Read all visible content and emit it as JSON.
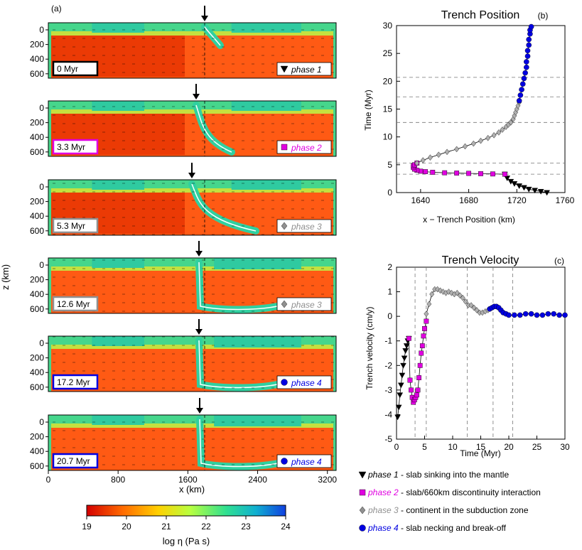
{
  "panel_a": {
    "label": "(a)",
    "ylabel": "z (km)",
    "xlabel": "x (km)",
    "x_ticks": [
      "0",
      "800",
      "1600",
      "2400",
      "3200"
    ],
    "y_ticks": [
      "0",
      "200",
      "400",
      "600"
    ],
    "snapshots": [
      {
        "time": "0 Myr",
        "phase": "phase 1",
        "marker": "triangle",
        "color": "#000000"
      },
      {
        "time": "3.3 Myr",
        "phase": "phase 2",
        "marker": "square",
        "color": "#e000e0"
      },
      {
        "time": "5.3 Myr",
        "phase": "phase 3",
        "marker": "diamond",
        "color": "#909090"
      },
      {
        "time": "12.6 Myr",
        "phase": "phase 3",
        "marker": "diamond",
        "color": "#909090"
      },
      {
        "time": "17.2 Myr",
        "phase": "phase 4",
        "marker": "circle",
        "color": "#0000e0"
      },
      {
        "time": "20.7 Myr",
        "phase": "phase 4",
        "marker": "circle",
        "color": "#0000e0"
      }
    ],
    "colorbar": {
      "label": "log η (Pa s)",
      "ticks": [
        "19",
        "20",
        "21",
        "22",
        "23",
        "24"
      ],
      "colors": [
        "#d40000",
        "#ff6a00",
        "#ffd000",
        "#b8ff40",
        "#30e090",
        "#10b0d0",
        "#1040e0"
      ]
    }
  },
  "chart_data": [
    {
      "type": "scatter",
      "title": "Trench Position",
      "label": "(b)",
      "xlabel": "x − Trench Position (km)",
      "ylabel": "Time (Myr)",
      "xlim": [
        1620,
        1760
      ],
      "ylim": [
        0,
        30
      ],
      "x_ticks": [
        "1640",
        "1680",
        "1720",
        "1760"
      ],
      "y_ticks": [
        "0",
        "5",
        "10",
        "15",
        "20",
        "25",
        "30"
      ],
      "hlines": [
        3.3,
        5.3,
        12.6,
        17.2,
        20.7
      ],
      "series": [
        {
          "phase": "phase 1",
          "marker": "triangle",
          "color": "#000000",
          "x": [
            1745,
            1740,
            1735,
            1730,
            1726,
            1722,
            1718,
            1715,
            1712,
            1710
          ],
          "y": [
            0,
            0.2,
            0.4,
            0.6,
            0.9,
            1.2,
            1.6,
            2.0,
            2.6,
            3.3
          ]
        },
        {
          "phase": "phase 2",
          "marker": "square",
          "color": "#e000e0",
          "x": [
            1710,
            1700,
            1690,
            1680,
            1670,
            1660,
            1650,
            1644,
            1640,
            1637,
            1635,
            1634,
            1634,
            1635,
            1637
          ],
          "y": [
            3.3,
            3.35,
            3.4,
            3.45,
            3.5,
            3.55,
            3.65,
            3.75,
            3.85,
            4.0,
            4.2,
            4.5,
            4.8,
            5.0,
            5.3
          ]
        },
        {
          "phase": "phase 3",
          "marker": "diamond",
          "color": "#b0b0b0",
          "x": [
            1637,
            1642,
            1648,
            1655,
            1662,
            1670,
            1677,
            1684,
            1690,
            1696,
            1701,
            1705,
            1708,
            1711,
            1713,
            1715
          ],
          "y": [
            5.3,
            5.8,
            6.3,
            6.8,
            7.3,
            7.8,
            8.3,
            8.8,
            9.3,
            9.8,
            10.3,
            10.8,
            11.3,
            11.8,
            12.2,
            12.6
          ]
        },
        {
          "phase": "phase 3",
          "marker": "diamond",
          "color": "#b0b0b0",
          "x": [
            1715,
            1717,
            1718,
            1719,
            1720,
            1721,
            1722
          ],
          "y": [
            12.6,
            13.2,
            13.8,
            14.4,
            15.0,
            15.6,
            16.2
          ]
        },
        {
          "phase": "phase 4",
          "marker": "circle",
          "color": "#0000e0",
          "x": [
            1722,
            1723,
            1724,
            1725,
            1726,
            1727,
            1728,
            1728,
            1729,
            1729,
            1730,
            1730,
            1731,
            1731,
            1732
          ],
          "y": [
            16.5,
            17.5,
            18.5,
            19.5,
            20.5,
            21.5,
            22.5,
            23.5,
            24.5,
            25.5,
            26.5,
            27.5,
            28.5,
            29.2,
            29.8
          ]
        }
      ]
    },
    {
      "type": "scatter",
      "title": "Trench Velocity",
      "label": "(c)",
      "xlabel": "Time (Myr)",
      "ylabel": "Trench velocity (cm/y)",
      "xlim": [
        0,
        30
      ],
      "ylim": [
        -5,
        2
      ],
      "x_ticks": [
        "0",
        "5",
        "10",
        "15",
        "20",
        "25",
        "30"
      ],
      "y_ticks": [
        "-5",
        "-4",
        "-3",
        "-2",
        "-1",
        "0",
        "1",
        "2"
      ],
      "vlines": [
        3.3,
        5.3,
        12.6,
        17.2,
        20.7
      ],
      "series": [
        {
          "phase": "phase 1",
          "marker": "triangle",
          "color": "#000000",
          "x": [
            0.2,
            0.4,
            0.6,
            0.8,
            1.0,
            1.2,
            1.4,
            1.6,
            1.8,
            2.0,
            2.2
          ],
          "y": [
            -4.1,
            -3.7,
            -3.2,
            -2.8,
            -2.4,
            -2.0,
            -1.7,
            -1.4,
            -1.2,
            -1.0,
            -0.9
          ]
        },
        {
          "phase": "phase 2",
          "marker": "square",
          "color": "#e000e0",
          "x": [
            2.2,
            2.4,
            2.6,
            2.8,
            3.0,
            3.2,
            3.4,
            3.6,
            3.8,
            4.0,
            4.2,
            4.4,
            4.6,
            4.8,
            5.0,
            5.3
          ],
          "y": [
            -0.9,
            -2.6,
            -3.0,
            -3.3,
            -3.5,
            -3.4,
            -3.3,
            -3.2,
            -3.0,
            -2.5,
            -2.0,
            -1.5,
            -1.2,
            -0.8,
            -0.5,
            -0.2
          ]
        },
        {
          "phase": "phase 3",
          "marker": "diamond",
          "color": "#b0b0b0",
          "x": [
            5.3,
            5.8,
            6.3,
            6.8,
            7.3,
            7.8,
            8.3,
            8.8,
            9.3,
            9.8,
            10.3,
            10.8,
            11.3,
            11.8,
            12.3,
            12.8,
            13.3,
            13.8,
            14.3,
            14.8,
            15.3,
            15.8,
            16.3
          ],
          "y": [
            0.1,
            0.5,
            0.9,
            1.1,
            1.1,
            1.05,
            1.0,
            0.95,
            1.0,
            0.95,
            0.9,
            0.95,
            0.85,
            0.75,
            0.6,
            0.45,
            0.45,
            0.35,
            0.25,
            0.15,
            0.15,
            0.2,
            0.25
          ]
        },
        {
          "phase": "phase 4",
          "marker": "circle",
          "color": "#0000e0",
          "x": [
            16.6,
            17.0,
            17.4,
            17.8,
            18.2,
            18.6,
            19.0,
            19.5,
            20.0,
            21.0,
            22.0,
            23.0,
            24.0,
            25.0,
            26.0,
            27.0,
            28.0,
            29.0,
            30.0
          ],
          "y": [
            0.3,
            0.35,
            0.4,
            0.4,
            0.35,
            0.25,
            0.15,
            0.1,
            0.05,
            0.05,
            0.05,
            0.1,
            0.1,
            0.05,
            0.05,
            0.1,
            0.1,
            0.05,
            0.05
          ]
        }
      ]
    }
  ],
  "legend": [
    {
      "marker": "triangle",
      "color": "#000000",
      "phase": "phase 1",
      "desc": " - slab sinking into the mantle"
    },
    {
      "marker": "square",
      "color": "#e000e0",
      "phase": "phase 2",
      "desc": " - slab/660km discontinuity interaction"
    },
    {
      "marker": "diamond",
      "color": "#909090",
      "phase": "phase 3",
      "desc": " - continent in the subduction zone"
    },
    {
      "marker": "circle",
      "color": "#0000e0",
      "phase": "phase 4",
      "desc": " - slab necking and break-off"
    }
  ]
}
